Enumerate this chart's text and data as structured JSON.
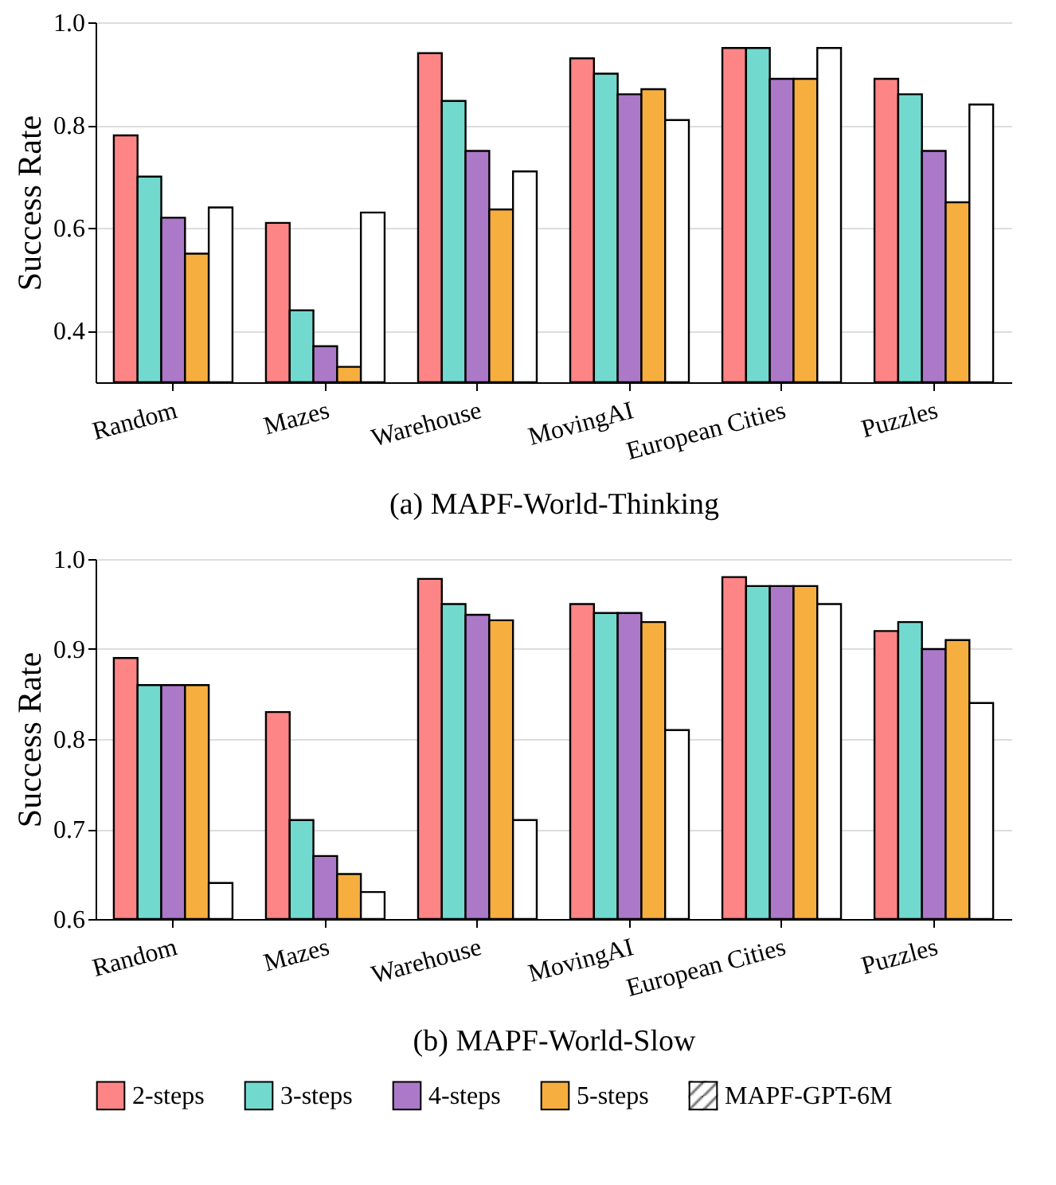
{
  "chart_data": [
    {
      "type": "bar",
      "title": "(a) MAPF-World-Thinking",
      "ylabel": "Success Rate",
      "categories": [
        "Random",
        "Mazes",
        "Warehouse",
        "MovingAI",
        "European Cities",
        "Puzzles"
      ],
      "series": [
        {
          "name": "2-steps",
          "color": "#fe8585",
          "values": [
            0.78,
            0.61,
            0.94,
            0.93,
            0.95,
            0.89
          ]
        },
        {
          "name": "3-steps",
          "color": "#72d9cf",
          "values": [
            0.7,
            0.44,
            0.847,
            0.9,
            0.95,
            0.86
          ]
        },
        {
          "name": "4-steps",
          "color": "#ab79c7",
          "values": [
            0.62,
            0.37,
            0.75,
            0.86,
            0.89,
            0.75
          ]
        },
        {
          "name": "5-steps",
          "color": "#f6ae3f",
          "values": [
            0.55,
            0.33,
            0.636,
            0.87,
            0.89,
            0.65
          ]
        },
        {
          "name": "MAPF-GPT-6M",
          "color": "#ffffff",
          "values": [
            0.64,
            0.63,
            0.71,
            0.81,
            0.95,
            0.84
          ]
        }
      ],
      "ylim": [
        0.3,
        1.0
      ],
      "yticks": [
        0.4,
        0.6,
        0.8,
        {
          "value": 1.0,
          "label": "1.0"
        }
      ],
      "grid": "y",
      "legend": "bottom"
    },
    {
      "type": "bar",
      "title": "(b) MAPF-World-Slow",
      "ylabel": "Success Rate",
      "categories": [
        "Random",
        "Mazes",
        "Warehouse",
        "MovingAI",
        "European Cities",
        "Puzzles"
      ],
      "series": [
        {
          "name": "2-steps",
          "color": "#fe8585",
          "values": [
            0.89,
            0.83,
            0.978,
            0.95,
            0.98,
            0.92
          ]
        },
        {
          "name": "3-steps",
          "color": "#72d9cf",
          "values": [
            0.86,
            0.71,
            0.95,
            0.94,
            0.97,
            0.93
          ]
        },
        {
          "name": "4-steps",
          "color": "#ab79c7",
          "values": [
            0.86,
            0.67,
            0.938,
            0.94,
            0.97,
            0.9
          ]
        },
        {
          "name": "5-steps",
          "color": "#f6ae3f",
          "values": [
            0.86,
            0.65,
            0.932,
            0.93,
            0.97,
            0.91
          ]
        },
        {
          "name": "MAPF-GPT-6M",
          "color": "#ffffff",
          "values": [
            0.64,
            0.63,
            0.71,
            0.81,
            0.95,
            0.84
          ]
        }
      ],
      "ylim": [
        0.6,
        1.0
      ],
      "yticks": [
        0.6,
        0.7,
        0.8,
        0.9,
        {
          "value": 1.0,
          "label": "1.0"
        }
      ],
      "grid": "y",
      "legend": "bottom"
    }
  ]
}
